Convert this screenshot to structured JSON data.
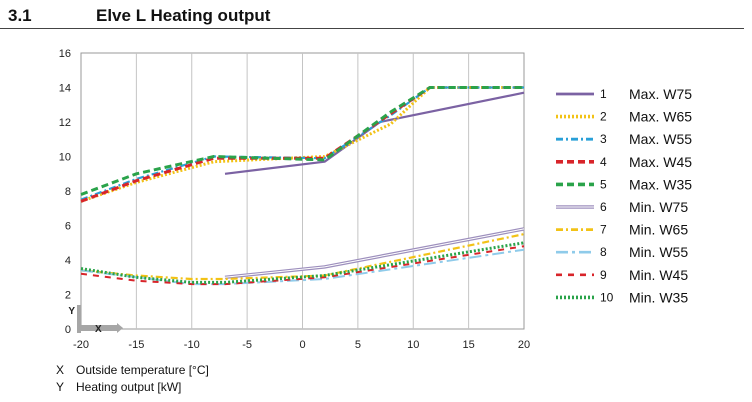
{
  "header": {
    "section_number": "3.1",
    "title": "Elve L Heating output"
  },
  "axis_key": {
    "x": {
      "letter": "X",
      "text": "Outside temperature [°C]"
    },
    "y": {
      "letter": "Y",
      "text": "Heating output [kW]"
    }
  },
  "chart_data": {
    "type": "line",
    "xlabel": "",
    "ylabel": "",
    "xlim": [
      -20,
      20
    ],
    "ylim": [
      0,
      16
    ],
    "xticks": [
      -20,
      -15,
      -10,
      -5,
      0,
      5,
      10,
      15,
      20
    ],
    "yticks": [
      0,
      2,
      4,
      6,
      8,
      10,
      12,
      14,
      16
    ],
    "grid": "vertical",
    "legend_position": "right",
    "axis_markers": {
      "x": "X",
      "y": "Y"
    },
    "series": [
      {
        "number": "1",
        "name": "Max. W75",
        "color": "#7b62a3",
        "style": "solid",
        "points": [
          [
            -7,
            9.0
          ],
          [
            2,
            9.7
          ],
          [
            7,
            12.0
          ],
          [
            20,
            13.7
          ]
        ]
      },
      {
        "number": "2",
        "name": "Max. W65",
        "color": "#f2c216",
        "style": "dotted",
        "points": [
          [
            -20,
            7.4
          ],
          [
            -15,
            8.5
          ],
          [
            -8,
            9.7
          ],
          [
            2,
            10.0
          ],
          [
            8,
            11.9
          ],
          [
            11.5,
            14.0
          ],
          [
            20,
            14.0
          ]
        ]
      },
      {
        "number": "3",
        "name": "Max. W55",
        "color": "#29a0d8",
        "style": "dashdot",
        "points": [
          [
            -20,
            7.5
          ],
          [
            -15,
            8.7
          ],
          [
            -8,
            10.0
          ],
          [
            2,
            9.9
          ],
          [
            8,
            12.4
          ],
          [
            11.5,
            14.0
          ],
          [
            20,
            14.0
          ]
        ]
      },
      {
        "number": "4",
        "name": "Max. W45",
        "color": "#d8242a",
        "style": "dashed",
        "points": [
          [
            -20,
            7.4
          ],
          [
            -15,
            8.6
          ],
          [
            -8,
            9.9
          ],
          [
            2,
            9.9
          ],
          [
            8,
            12.5
          ],
          [
            11.5,
            14.0
          ],
          [
            20,
            14.0
          ]
        ]
      },
      {
        "number": "5",
        "name": "Max. W35",
        "color": "#2aa34a",
        "style": "dashed",
        "points": [
          [
            -20,
            7.8
          ],
          [
            -15,
            9.0
          ],
          [
            -8,
            10.0
          ],
          [
            2,
            9.8
          ],
          [
            8,
            12.6
          ],
          [
            11.5,
            14.0
          ],
          [
            20,
            14.0
          ]
        ]
      },
      {
        "number": "6",
        "name": "Min. W75",
        "color": "#9d8fbd",
        "style": "double",
        "points": [
          [
            -7,
            3.0
          ],
          [
            2,
            3.6
          ],
          [
            20,
            5.8
          ]
        ]
      },
      {
        "number": "7",
        "name": "Min. W65",
        "color": "#f2c216",
        "style": "dashdot",
        "points": [
          [
            -20,
            3.4
          ],
          [
            -15,
            3.1
          ],
          [
            -10,
            2.9
          ],
          [
            -7,
            2.9
          ],
          [
            2,
            3.1
          ],
          [
            20,
            5.5
          ]
        ]
      },
      {
        "number": "8",
        "name": "Min. W55",
        "color": "#8fcbea",
        "style": "longdash",
        "points": [
          [
            -20,
            3.4
          ],
          [
            -15,
            3.0
          ],
          [
            -10,
            2.6
          ],
          [
            -7,
            2.6
          ],
          [
            2,
            2.9
          ],
          [
            20,
            4.6
          ]
        ]
      },
      {
        "number": "9",
        "name": "Min. W45",
        "color": "#d8242a",
        "style": "sparsedash",
        "points": [
          [
            -20,
            3.2
          ],
          [
            -15,
            2.8
          ],
          [
            -10,
            2.6
          ],
          [
            -7,
            2.6
          ],
          [
            2,
            3.0
          ],
          [
            20,
            4.8
          ]
        ]
      },
      {
        "number": "10",
        "name": "Min. W35",
        "color": "#2aa34a",
        "style": "dotted",
        "points": [
          [
            -20,
            3.5
          ],
          [
            -15,
            3.0
          ],
          [
            -10,
            2.7
          ],
          [
            -7,
            2.7
          ],
          [
            2,
            3.1
          ],
          [
            20,
            5.0
          ]
        ]
      }
    ]
  }
}
